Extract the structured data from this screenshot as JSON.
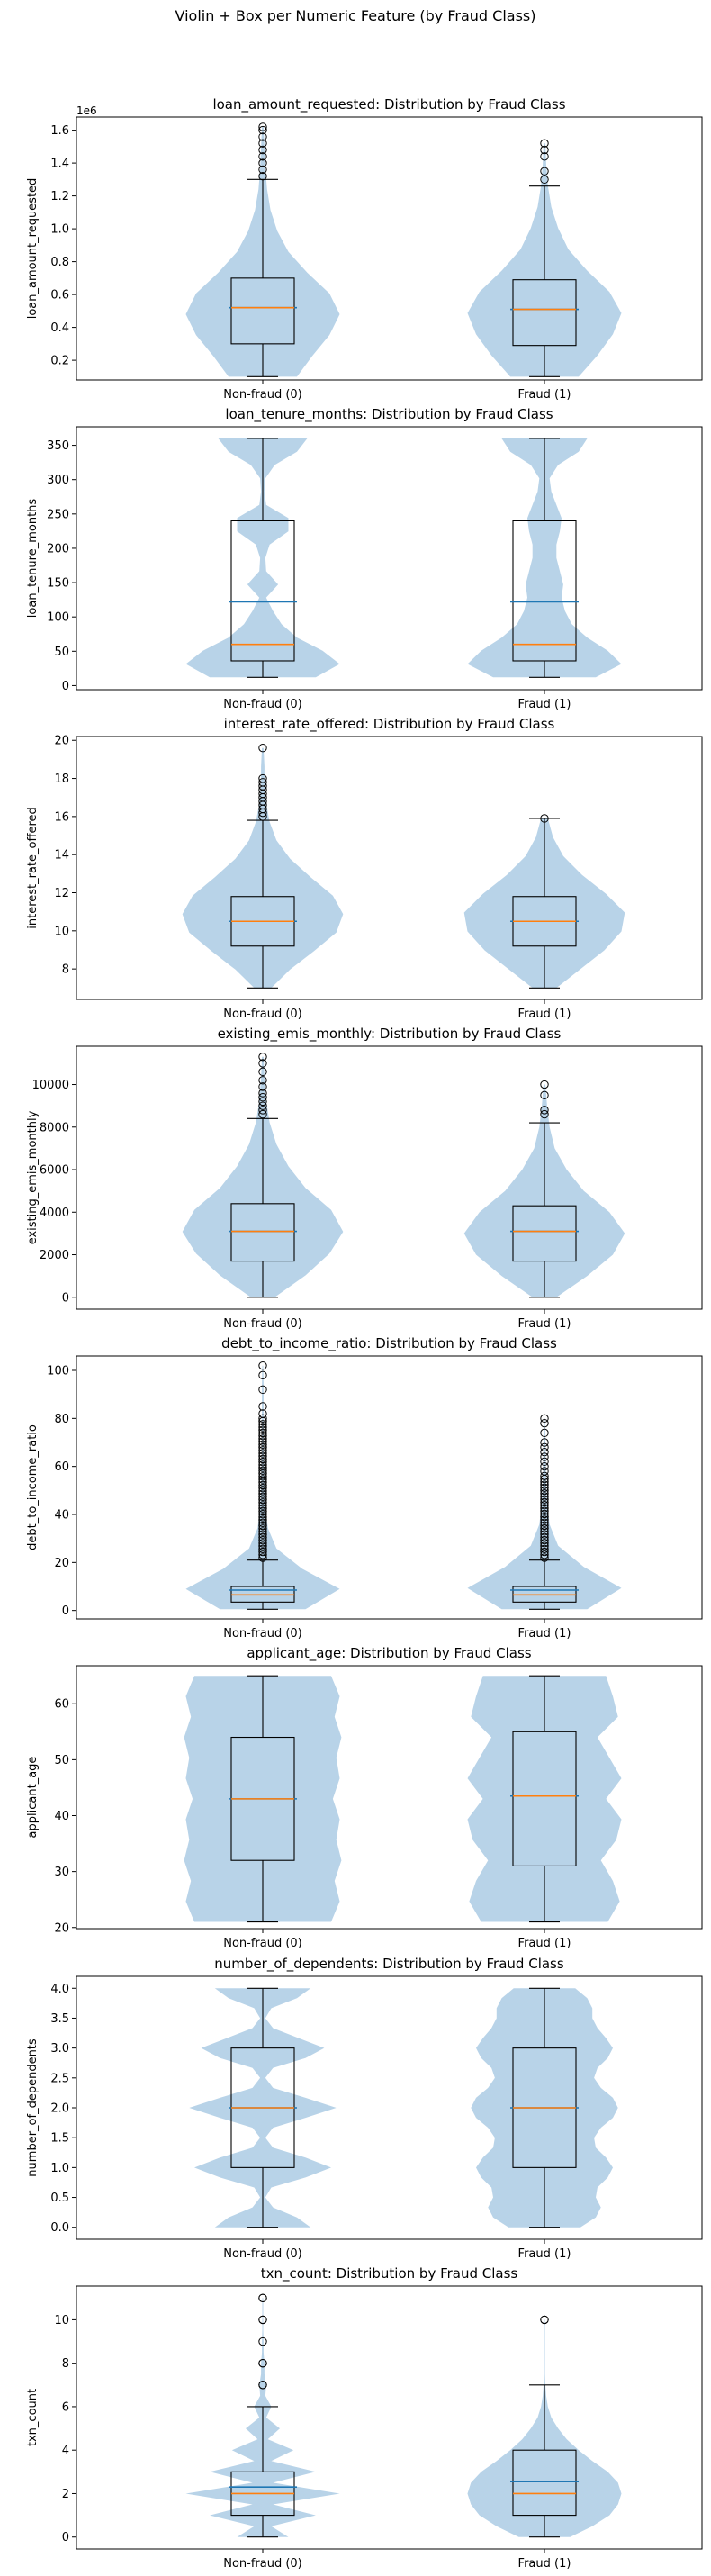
{
  "suptitle": "Violin + Box per Numeric Feature (by Fraud Class)",
  "categories": [
    "Non-fraud (0)",
    "Fraud (1)"
  ],
  "colors": {
    "violin_fill": "#b8d3e8",
    "box_median": "#ff7f0e",
    "violin_mean_line": "#1f77b4",
    "box_edge": "#000000",
    "axes_edge": "#000000"
  },
  "chart_data": [
    {
      "type": "violin-box",
      "title": "loan_amount_requested: Distribution by Fraud Class",
      "ylabel": "loan_amount_requested",
      "offset_label": "1e6",
      "ylim": [
        0.08,
        1.68
      ],
      "yticks": [
        0.2,
        0.4,
        0.6,
        0.8,
        1.0,
        1.2,
        1.4,
        1.6
      ],
      "tick_decimals": 1,
      "groups": [
        {
          "category": "Non-fraud (0)",
          "whisker_low": 0.1,
          "q1": 0.3,
          "median": 0.52,
          "mean": 0.52,
          "q3": 0.7,
          "whisker_high": 1.3,
          "outliers": [
            1.32,
            1.36,
            1.4,
            1.44,
            1.48,
            1.52,
            1.56,
            1.6,
            1.62
          ],
          "violin": {
            "min": 0.1,
            "max": 1.62,
            "half_width": [
              0.4,
              0.58,
              0.78,
              0.9,
              0.78,
              0.52,
              0.3,
              0.17,
              0.09,
              0.05,
              0.03,
              0.02,
              0.01
            ]
          }
        },
        {
          "category": "Fraud (1)",
          "whisker_low": 0.1,
          "q1": 0.29,
          "median": 0.51,
          "mean": 0.51,
          "q3": 0.69,
          "whisker_high": 1.26,
          "outliers": [
            1.3,
            1.35,
            1.44,
            1.48,
            1.52
          ],
          "violin": {
            "min": 0.1,
            "max": 1.52,
            "half_width": [
              0.4,
              0.62,
              0.8,
              0.9,
              0.76,
              0.5,
              0.28,
              0.16,
              0.08,
              0.04,
              0.02,
              0.01
            ]
          }
        }
      ]
    },
    {
      "type": "violin-box",
      "title": "loan_tenure_months: Distribution by Fraud Class",
      "ylabel": "loan_tenure_months",
      "offset_label": "",
      "ylim": [
        -6,
        377
      ],
      "yticks": [
        0,
        50,
        100,
        150,
        200,
        250,
        300,
        350
      ],
      "tick_decimals": 0,
      "groups": [
        {
          "category": "Non-fraud (0)",
          "whisker_low": 12,
          "q1": 36,
          "median": 60,
          "mean": 122,
          "q3": 240,
          "whisker_high": 360,
          "outliers": [],
          "violin": {
            "min": 12,
            "max": 360,
            "half_width": [
              0.62,
              0.9,
              0.7,
              0.4,
              0.22,
              0.12,
              0.04,
              0.18,
              0.04,
              0.03,
              0.08,
              0.3,
              0.3,
              0.04,
              0.02,
              0.03,
              0.14,
              0.4,
              0.52
            ]
          }
        },
        {
          "category": "Fraud (1)",
          "whisker_low": 12,
          "q1": 36,
          "median": 60,
          "mean": 122,
          "q3": 240,
          "whisker_high": 360,
          "outliers": [],
          "violin": {
            "min": 12,
            "max": 360,
            "half_width": [
              0.6,
              0.9,
              0.74,
              0.5,
              0.32,
              0.24,
              0.2,
              0.22,
              0.18,
              0.14,
              0.14,
              0.18,
              0.2,
              0.14,
              0.08,
              0.06,
              0.16,
              0.4,
              0.5
            ]
          }
        }
      ]
    },
    {
      "type": "violin-box",
      "title": "interest_rate_offered: Distribution by Fraud Class",
      "ylabel": "interest_rate_offered",
      "offset_label": "",
      "ylim": [
        6.4,
        20.2
      ],
      "yticks": [
        8,
        10,
        12,
        14,
        16,
        18,
        20
      ],
      "tick_decimals": 0,
      "groups": [
        {
          "category": "Non-fraud (0)",
          "whisker_low": 7.0,
          "q1": 9.2,
          "median": 10.5,
          "mean": 10.5,
          "q3": 11.8,
          "whisker_high": 15.8,
          "outliers": [
            16.0,
            16.2,
            16.4,
            16.6,
            16.8,
            17.0,
            17.2,
            17.4,
            17.6,
            17.8,
            18.0,
            19.6
          ],
          "violin": {
            "min": 7.0,
            "max": 19.6,
            "half_width": [
              0.1,
              0.32,
              0.6,
              0.86,
              0.94,
              0.82,
              0.56,
              0.32,
              0.16,
              0.08,
              0.04,
              0.02,
              0.02,
              0.01
            ]
          }
        },
        {
          "category": "Fraud (1)",
          "whisker_low": 7.0,
          "q1": 9.2,
          "median": 10.5,
          "mean": 10.5,
          "q3": 11.8,
          "whisker_high": 15.9,
          "outliers": [
            15.9
          ],
          "violin": {
            "min": 7.0,
            "max": 15.9,
            "half_width": [
              0.14,
              0.42,
              0.7,
              0.9,
              0.94,
              0.72,
              0.44,
              0.22,
              0.1,
              0.04
            ]
          }
        }
      ]
    },
    {
      "type": "violin-box",
      "title": "existing_emis_monthly: Distribution by Fraud Class",
      "ylabel": "existing_emis_monthly",
      "offset_label": "",
      "ylim": [
        -560,
        11800
      ],
      "yticks": [
        0,
        2000,
        4000,
        6000,
        8000,
        10000
      ],
      "tick_decimals": 0,
      "groups": [
        {
          "category": "Non-fraud (0)",
          "whisker_low": 0,
          "q1": 1700,
          "median": 3100,
          "mean": 3100,
          "q3": 4400,
          "whisker_high": 8400,
          "outliers": [
            8600,
            8800,
            9000,
            9200,
            9400,
            9600,
            9900,
            10200,
            10600,
            11000,
            11300
          ],
          "violin": {
            "min": 0,
            "max": 11300,
            "half_width": [
              0.14,
              0.5,
              0.78,
              0.94,
              0.8,
              0.5,
              0.3,
              0.16,
              0.08,
              0.04,
              0.02,
              0.01
            ]
          }
        },
        {
          "category": "Fraud (1)",
          "whisker_low": 0,
          "q1": 1700,
          "median": 3100,
          "mean": 3100,
          "q3": 4300,
          "whisker_high": 8200,
          "outliers": [
            8600,
            8800,
            9500,
            10000
          ],
          "violin": {
            "min": 0,
            "max": 10000,
            "half_width": [
              0.14,
              0.5,
              0.8,
              0.94,
              0.76,
              0.46,
              0.26,
              0.12,
              0.06,
              0.03,
              0.01
            ]
          }
        }
      ]
    },
    {
      "type": "violin-box",
      "title": "debt_to_income_ratio: Distribution by Fraud Class",
      "ylabel": "debt_to_income_ratio",
      "offset_label": "",
      "ylim": [
        -3.5,
        106
      ],
      "yticks": [
        0,
        20,
        40,
        60,
        80,
        100
      ],
      "tick_decimals": 0,
      "groups": [
        {
          "category": "Non-fraud (0)",
          "whisker_low": 0.5,
          "q1": 3.5,
          "median": 6.5,
          "mean": 8.5,
          "q3": 10.0,
          "whisker_high": 21,
          "dense_outliers": [
            22,
            80
          ],
          "outliers": [
            82,
            85,
            92,
            98,
            102
          ],
          "violin": {
            "min": 0.5,
            "max": 102,
            "half_width": [
              0.5,
              0.9,
              0.46,
              0.16,
              0.06,
              0.03,
              0.02,
              0.015,
              0.01,
              0.01,
              0.01,
              0.01,
              0.005
            ]
          }
        },
        {
          "category": "Fraud (1)",
          "whisker_low": 0.5,
          "q1": 3.5,
          "median": 6.5,
          "mean": 8.5,
          "q3": 10.0,
          "whisker_high": 21,
          "dense_outliers": [
            22,
            56
          ],
          "outliers": [
            58,
            60,
            62,
            64,
            66,
            68,
            70,
            74,
            78,
            80
          ],
          "violin": {
            "min": 0.5,
            "max": 80,
            "half_width": [
              0.5,
              0.9,
              0.46,
              0.16,
              0.06,
              0.03,
              0.02,
              0.015,
              0.01,
              0.005
            ]
          }
        }
      ]
    },
    {
      "type": "violin-box",
      "title": "applicant_age: Distribution by Fraud Class",
      "ylabel": "applicant_age",
      "offset_label": "",
      "ylim": [
        19.8,
        66.8
      ],
      "yticks": [
        20,
        30,
        40,
        50,
        60
      ],
      "tick_decimals": 0,
      "groups": [
        {
          "category": "Non-fraud (0)",
          "whisker_low": 21,
          "q1": 32,
          "median": 43,
          "mean": 43,
          "q3": 54,
          "whisker_high": 65,
          "outliers": [],
          "violin": {
            "min": 21,
            "max": 65,
            "half_width": [
              0.8,
              0.9,
              0.84,
              0.92,
              0.86,
              0.9,
              0.82,
              0.9,
              0.86,
              0.92,
              0.84,
              0.9,
              0.8
            ]
          }
        },
        {
          "category": "Fraud (1)",
          "whisker_low": 21,
          "q1": 31,
          "median": 43.5,
          "mean": 43.5,
          "q3": 55,
          "whisker_high": 65,
          "outliers": [],
          "violin": {
            "min": 21,
            "max": 65,
            "half_width": [
              0.74,
              0.88,
              0.8,
              0.66,
              0.84,
              0.9,
              0.72,
              0.9,
              0.76,
              0.62,
              0.86,
              0.8,
              0.72
            ]
          }
        }
      ]
    },
    {
      "type": "violin-box",
      "title": "number_of_dependents: Distribution by Fraud Class",
      "ylabel": "number_of_dependents",
      "offset_label": "",
      "ylim": [
        -0.2,
        4.2
      ],
      "yticks": [
        0.0,
        0.5,
        1.0,
        1.5,
        2.0,
        2.5,
        3.0,
        3.5,
        4.0
      ],
      "tick_decimals": 1,
      "groups": [
        {
          "category": "Non-fraud (0)",
          "whisker_low": 0,
          "q1": 1,
          "median": 2,
          "mean": 2,
          "q3": 3,
          "whisker_high": 4,
          "outliers": [],
          "violin": {
            "min": 0,
            "max": 4,
            "half_width": [
              0.56,
              0.4,
              0.12,
              0.03,
              0.1,
              0.5,
              0.8,
              0.5,
              0.12,
              0.03,
              0.12,
              0.5,
              0.86,
              0.5,
              0.12,
              0.03,
              0.12,
              0.5,
              0.72,
              0.42,
              0.12,
              0.03,
              0.1,
              0.4,
              0.56
            ]
          }
        },
        {
          "category": "Fraud (1)",
          "whisker_low": 0,
          "q1": 1,
          "median": 2,
          "mean": 2,
          "q3": 3,
          "whisker_high": 4,
          "outliers": [],
          "violin": {
            "min": 0,
            "max": 4,
            "half_width": [
              0.42,
              0.6,
              0.66,
              0.6,
              0.62,
              0.74,
              0.8,
              0.72,
              0.6,
              0.58,
              0.66,
              0.8,
              0.86,
              0.8,
              0.66,
              0.58,
              0.62,
              0.74,
              0.8,
              0.72,
              0.62,
              0.56,
              0.56,
              0.5,
              0.36
            ]
          }
        }
      ]
    },
    {
      "type": "violin-box",
      "title": "txn_count: Distribution by Fraud Class",
      "ylabel": "txn_count",
      "offset_label": "",
      "ylim": [
        -0.55,
        11.55
      ],
      "yticks": [
        0,
        2,
        4,
        6,
        8,
        10
      ],
      "tick_decimals": 0,
      "groups": [
        {
          "category": "Non-fraud (0)",
          "whisker_low": 0,
          "q1": 1,
          "median": 2,
          "mean": 2.3,
          "q3": 3,
          "whisker_high": 6,
          "outliers": [
            7,
            7,
            8,
            8,
            9,
            10,
            10,
            11,
            11
          ],
          "violin": {
            "min": 0,
            "max": 11,
            "half_width": [
              0.3,
              0.1,
              0.62,
              0.12,
              0.9,
              0.12,
              0.62,
              0.1,
              0.36,
              0.06,
              0.2,
              0.04,
              0.1,
              0.03,
              0.04,
              0.02,
              0.02,
              0.01,
              0.01,
              0.005,
              0.005,
              0.005,
              0.005
            ]
          }
        },
        {
          "category": "Fraud (1)",
          "whisker_low": 0,
          "q1": 1,
          "median": 2,
          "mean": 2.55,
          "q3": 4,
          "whisker_high": 7,
          "outliers": [
            10,
            10
          ],
          "violin": {
            "min": 0,
            "max": 10,
            "half_width": [
              0.3,
              0.56,
              0.76,
              0.86,
              0.9,
              0.86,
              0.74,
              0.56,
              0.4,
              0.26,
              0.16,
              0.08,
              0.04,
              0.02,
              0.01,
              0.005,
              0.005,
              0.005,
              0.005,
              0.005,
              0.005
            ]
          }
        }
      ]
    }
  ]
}
